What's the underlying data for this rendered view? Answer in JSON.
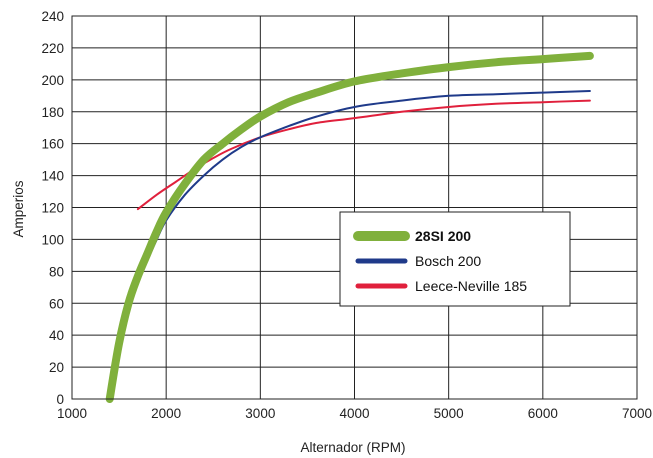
{
  "chart_data": {
    "type": "line",
    "xlabel": "Alternador (RPM)",
    "ylabel": "Amperios",
    "xlim": [
      1000,
      7000
    ],
    "ylim": [
      0,
      240
    ],
    "xticks": [
      1000,
      2000,
      3000,
      4000,
      5000,
      6000,
      7000
    ],
    "yticks": [
      0,
      20,
      40,
      60,
      80,
      100,
      120,
      140,
      160,
      180,
      200,
      220,
      240
    ],
    "grid": true,
    "legend_position": "right",
    "series": [
      {
        "name": "28SI 200",
        "color": "#80b03c",
        "bold": true,
        "x": [
          1400,
          1500,
          1600,
          1700,
          1800,
          1900,
          2000,
          2200,
          2400,
          2600,
          2800,
          3000,
          3300,
          3600,
          4000,
          4500,
          5000,
          5500,
          6000,
          6500
        ],
        "y": [
          0,
          35,
          60,
          77,
          91,
          105,
          117,
          135,
          150,
          160,
          169,
          177,
          186,
          192,
          199,
          204,
          208,
          211,
          213,
          215
        ]
      },
      {
        "name": "Bosch 200",
        "color": "#1f3a8a",
        "bold": false,
        "x": [
          1800,
          1900,
          2000,
          2200,
          2400,
          2600,
          2800,
          3000,
          3300,
          3600,
          4000,
          4500,
          5000,
          5500,
          6000,
          6500
        ],
        "y": [
          87,
          100,
          112,
          128,
          140,
          150,
          158,
          164,
          171,
          177,
          183,
          187,
          190,
          191,
          192,
          193
        ]
      },
      {
        "name": "Leece-Neville 185",
        "color": "#e0203c",
        "bold": false,
        "x": [
          1700,
          1900,
          2100,
          2300,
          2500,
          2700,
          3000,
          3300,
          3600,
          4000,
          4500,
          5000,
          5500,
          6000,
          6500
        ],
        "y": [
          119,
          128,
          136,
          144,
          151,
          157,
          164,
          169,
          173,
          176,
          180,
          183,
          185,
          186,
          187
        ]
      }
    ]
  }
}
